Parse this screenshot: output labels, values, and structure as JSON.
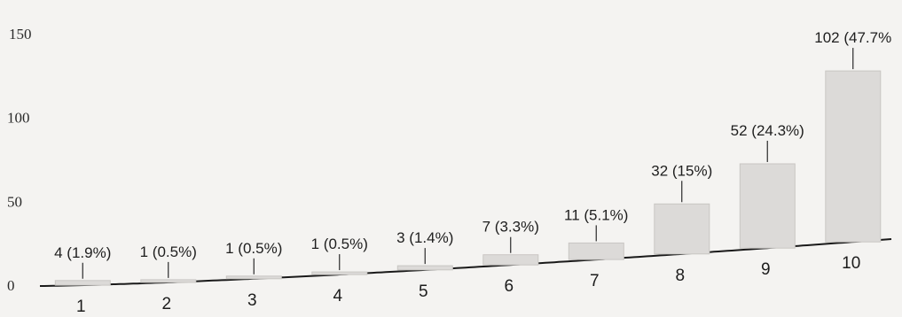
{
  "chart_data": {
    "type": "bar",
    "categories": [
      "1",
      "2",
      "3",
      "4",
      "5",
      "6",
      "7",
      "8",
      "9",
      "10"
    ],
    "values": [
      4,
      1,
      1,
      1,
      3,
      7,
      11,
      32,
      52,
      102
    ],
    "data_labels": [
      "4 (1.9%)",
      "1 (0.5%)",
      "1 (0.5%)",
      "1 (0.5%)",
      "3 (1.4%)",
      "7 (3.3%)",
      "11 (5.1%)",
      "32 (15%)",
      "52 (24.3%)",
      "102 (47.7%"
    ],
    "y_ticks": [
      "0",
      "50",
      "100",
      "150"
    ],
    "ylim": [
      0,
      150
    ],
    "grid": false,
    "bar_color": "#dcdad8"
  }
}
